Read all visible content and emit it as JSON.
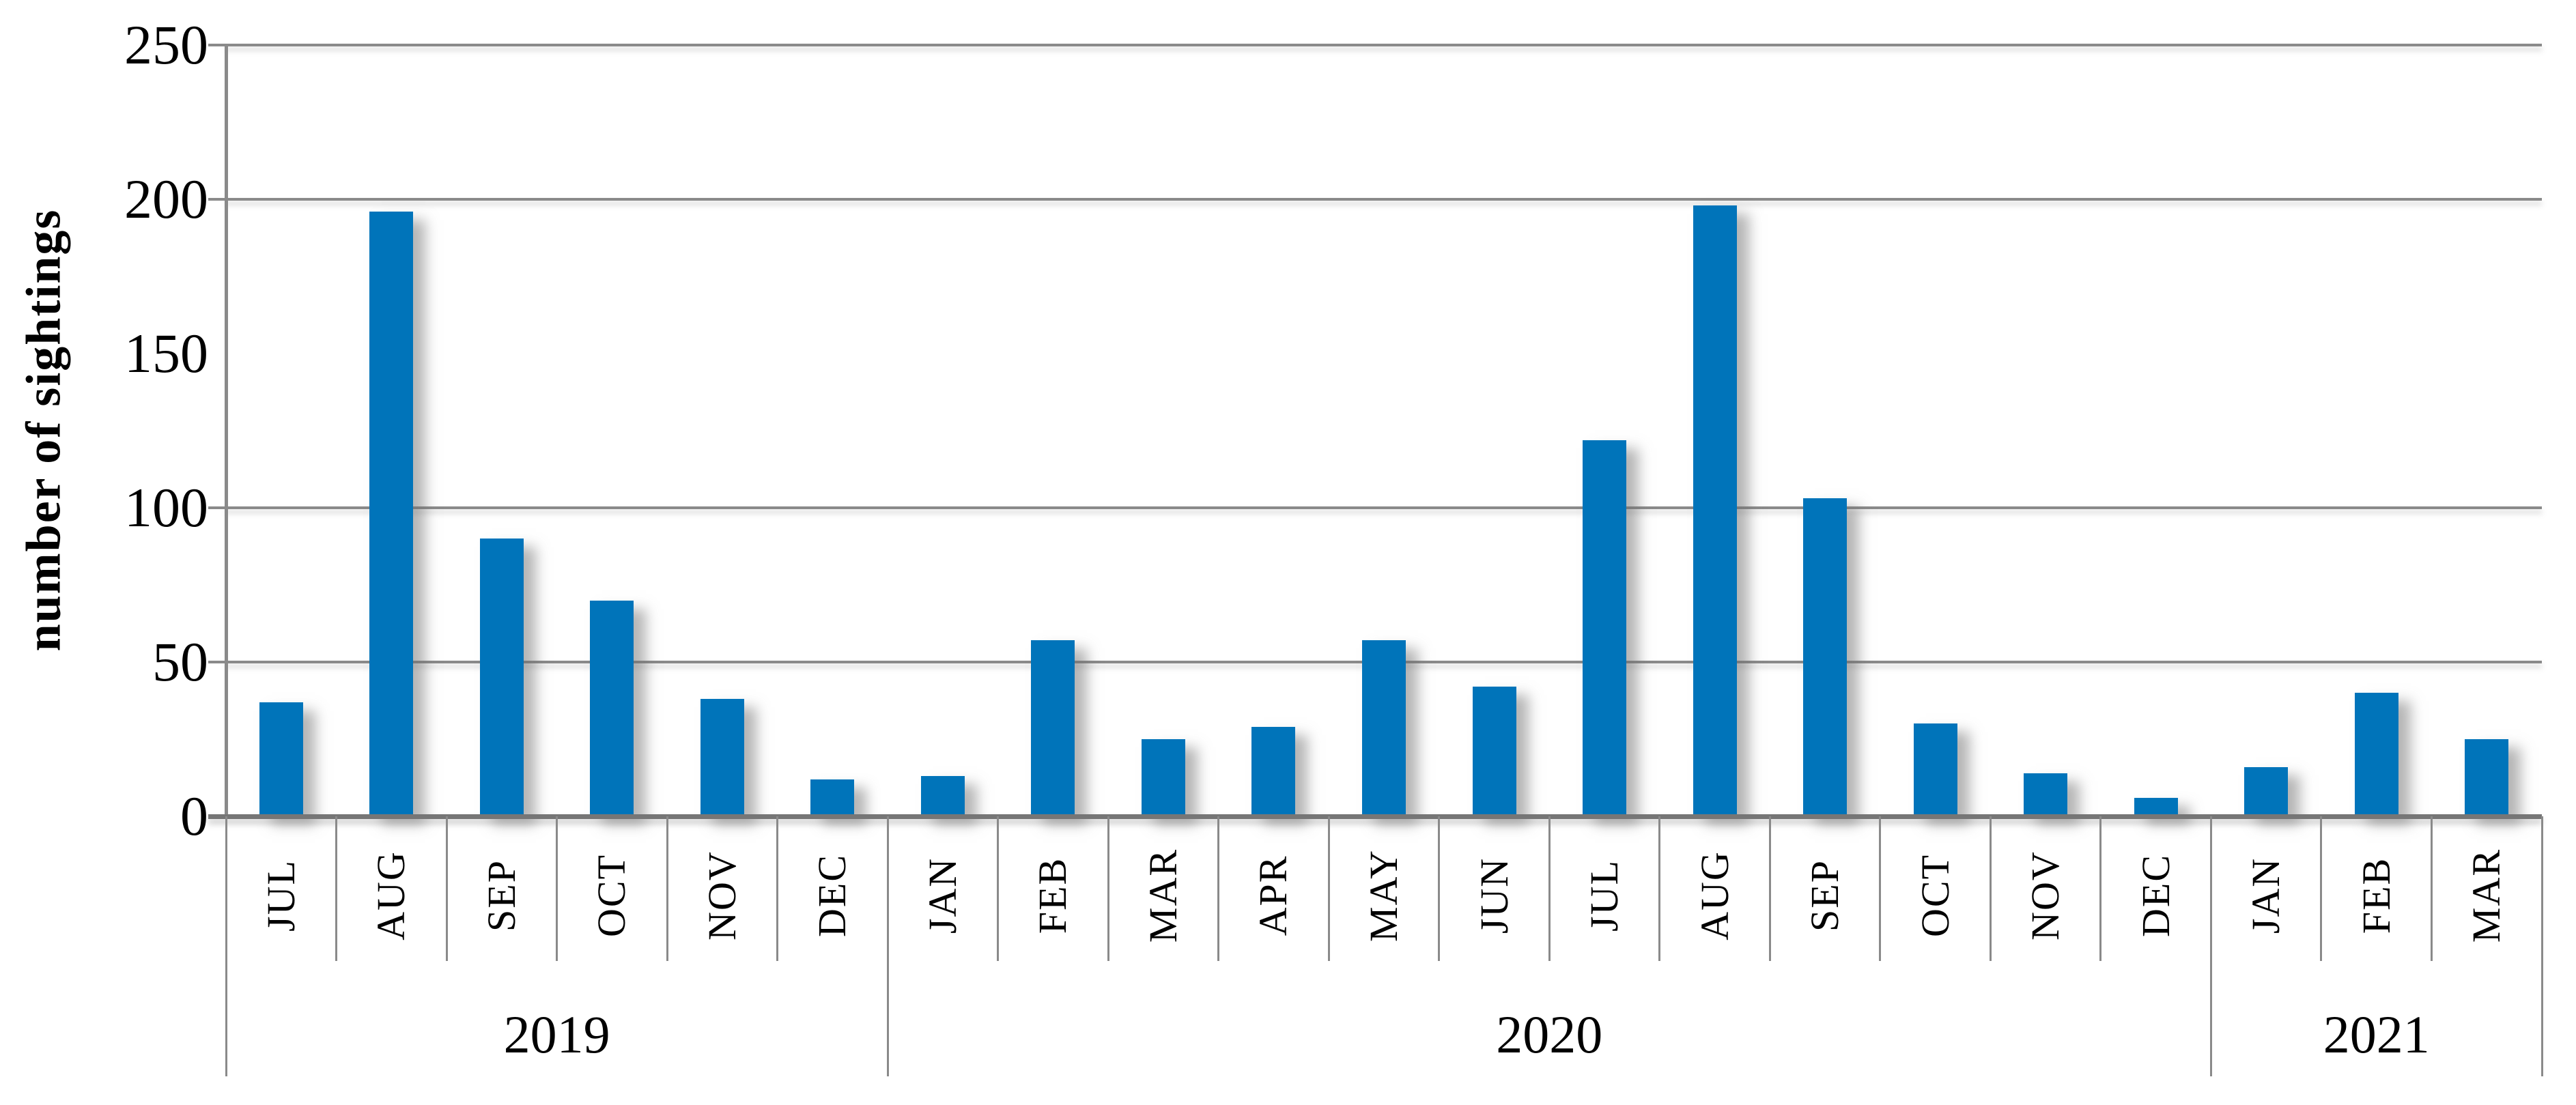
{
  "chart_data": {
    "type": "bar",
    "title": "",
    "ylabel": "number of sightings",
    "xlabel": "",
    "ylim": [
      0,
      250
    ],
    "yticks": [
      250,
      200,
      150,
      100,
      50,
      0
    ],
    "gridlines_at": [
      250,
      200,
      100,
      50
    ],
    "bar_color": "#0074BA",
    "grid_color": "#8a8a8a",
    "axis_color": "#767676",
    "categories": [
      "JUL",
      "AUG",
      "SEP",
      "OCT",
      "NOV",
      "DEC",
      "JAN",
      "FEB",
      "MAR",
      "APR",
      "MAY",
      "JUN",
      "JUL",
      "AUG",
      "SEP",
      "OCT",
      "NOV",
      "DEC",
      "JAN",
      "FEB",
      "MAR"
    ],
    "values": [
      37,
      196,
      90,
      70,
      38,
      12,
      13,
      57,
      25,
      29,
      57,
      42,
      122,
      198,
      103,
      30,
      14,
      6,
      16,
      40,
      25
    ],
    "year_groups": [
      {
        "label": "2019",
        "start": 0,
        "count": 6
      },
      {
        "label": "2020",
        "start": 6,
        "count": 12
      },
      {
        "label": "2021",
        "start": 18,
        "count": 3
      }
    ],
    "legend_position": "none",
    "grid": "horizontal"
  }
}
